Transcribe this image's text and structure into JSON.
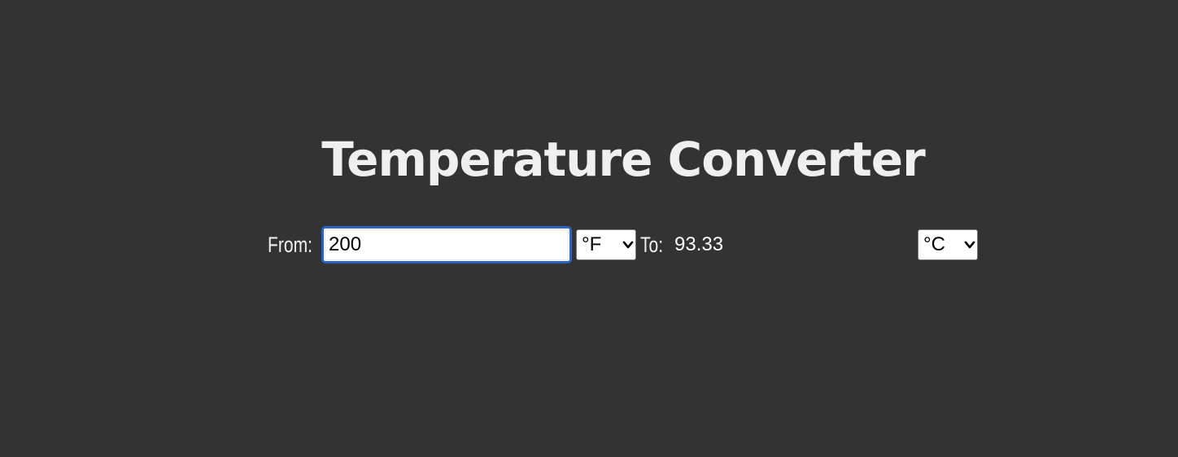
{
  "title": "Temperature Converter",
  "converter": {
    "from_label": "From:",
    "from_value": "200",
    "from_unit": "°F",
    "to_label": "To:",
    "to_value": "93.33",
    "to_unit": "°C"
  },
  "colors": {
    "background": "#333333",
    "text": "#f0f0f0",
    "input_focus_border": "#2a63c4"
  }
}
